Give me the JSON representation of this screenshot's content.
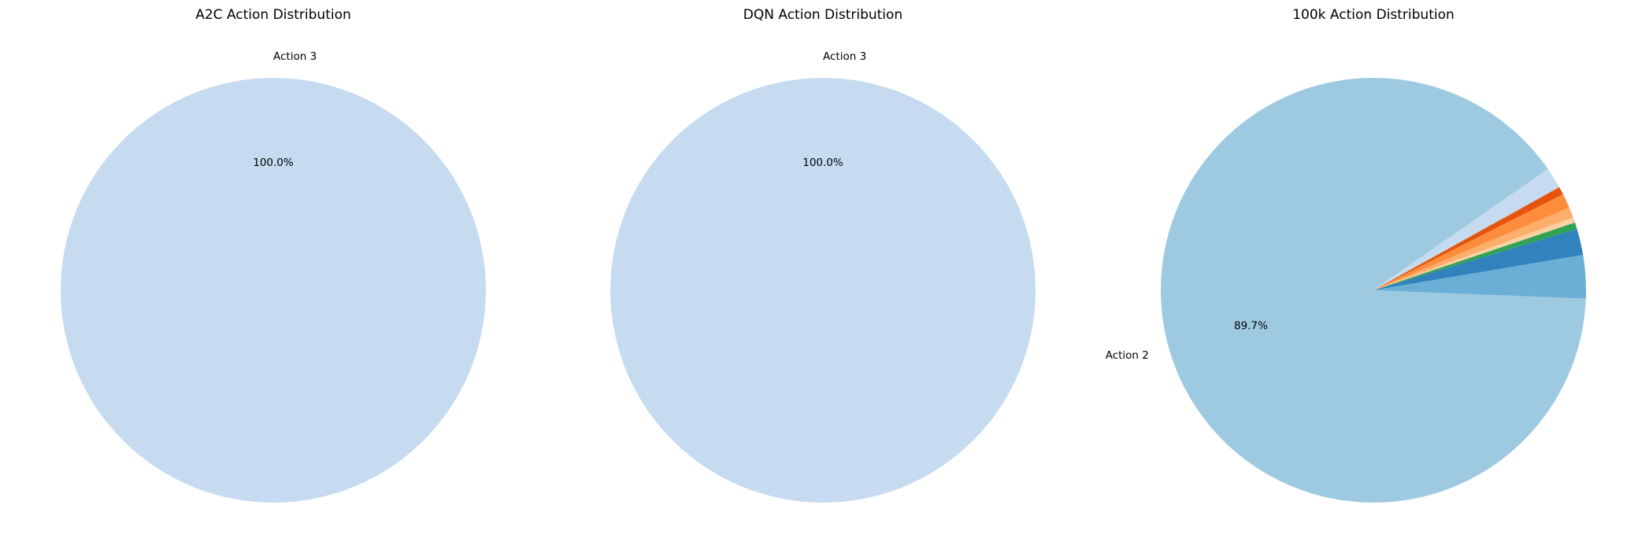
{
  "chart_data": [
    {
      "type": "pie",
      "title": "A2C Action Distribution",
      "slices": [
        {
          "label": "Action 3",
          "value": 100.0,
          "color": "#c6dbef",
          "show_pct": true,
          "show_label": true
        }
      ]
    },
    {
      "type": "pie",
      "title": "DQN Action Distribution",
      "slices": [
        {
          "label": "Action 3",
          "value": 100.0,
          "color": "#c6dbef",
          "show_pct": true,
          "show_label": true
        }
      ]
    },
    {
      "type": "pie",
      "title": "100k Action Distribution",
      "slices": [
        {
          "label": "Action 2",
          "value": 89.7,
          "color": "#9ecae1",
          "show_pct": true,
          "show_label": true
        },
        {
          "label": "",
          "value": 3.3,
          "color": "#6baed6",
          "show_pct": false,
          "show_label": false
        },
        {
          "label": "",
          "value": 2.0,
          "color": "#3182bd",
          "show_pct": false,
          "show_label": false
        },
        {
          "label": "",
          "value": 0.5,
          "color": "#31a354",
          "show_pct": false,
          "show_label": false
        },
        {
          "label": "",
          "value": 0.4,
          "color": "#fdd0a2",
          "show_pct": false,
          "show_label": false
        },
        {
          "label": "",
          "value": 0.8,
          "color": "#fdae6b",
          "show_pct": false,
          "show_label": false
        },
        {
          "label": "",
          "value": 1.1,
          "color": "#fd8d3c",
          "show_pct": false,
          "show_label": false
        },
        {
          "label": "",
          "value": 0.6,
          "color": "#e6550d",
          "show_pct": false,
          "show_label": false
        },
        {
          "label": "",
          "value": 1.6,
          "color": "#c6dbef",
          "show_pct": false,
          "show_label": false
        }
      ]
    }
  ]
}
